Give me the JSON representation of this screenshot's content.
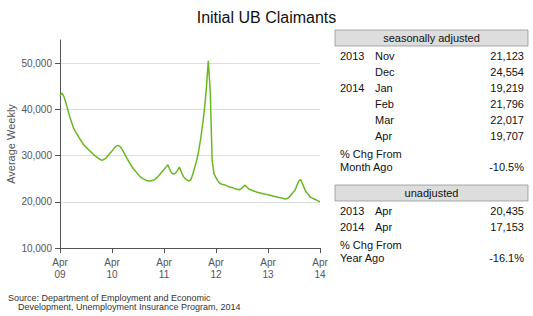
{
  "chart_data": {
    "type": "line",
    "title": "Initial UB Claimants",
    "ylabel": "Average Weekly",
    "categories": [
      "Apr\n09",
      null,
      null,
      null,
      null,
      null,
      null,
      null,
      null,
      null,
      null,
      null,
      null,
      null,
      null,
      null,
      null,
      null,
      null,
      null,
      null,
      null,
      null,
      null,
      null,
      null,
      null,
      "Apr\n10",
      null,
      null,
      null,
      null,
      null,
      null,
      null,
      null,
      null,
      null,
      null,
      null,
      null,
      null,
      null,
      null,
      null,
      null,
      null,
      null,
      null,
      null,
      null,
      null,
      null,
      null,
      "Apr\n11",
      null,
      null,
      null,
      null,
      null,
      null,
      null,
      null,
      null,
      null,
      null,
      null,
      null,
      null,
      null,
      null,
      null,
      null,
      null,
      null,
      null,
      null,
      null,
      null,
      null,
      null,
      "Apr\n12",
      null,
      null,
      null,
      null,
      null,
      null,
      null,
      null,
      null,
      null,
      null,
      null,
      null,
      null,
      null,
      null,
      null,
      null,
      null,
      null,
      null,
      null,
      null,
      null,
      null,
      null,
      "Apr\n13",
      null,
      null,
      null,
      null,
      null,
      null,
      null,
      null,
      null,
      null,
      null,
      null,
      null,
      null,
      null,
      null,
      null,
      null,
      null,
      null,
      null,
      null,
      null,
      null,
      null,
      null,
      "Apr\n14"
    ],
    "values": [
      43000,
      43500,
      42800,
      41500,
      40000,
      38500,
      37200,
      36000,
      35200,
      34500,
      33800,
      33200,
      32500,
      32000,
      31600,
      31200,
      30800,
      30400,
      30000,
      29700,
      29400,
      29100,
      29000,
      29200,
      29500,
      30000,
      30500,
      31000,
      31500,
      32000,
      32200,
      32000,
      31500,
      30800,
      30000,
      29200,
      28500,
      27800,
      27200,
      26700,
      26200,
      25700,
      25300,
      25000,
      24800,
      24600,
      24500,
      24500,
      24600,
      24800,
      25100,
      25500,
      26000,
      26500,
      27000,
      27500,
      28000,
      27000,
      26200,
      26000,
      26200,
      26800,
      27500,
      26500,
      25500,
      25000,
      24700,
      24500,
      24800,
      26000,
      27500,
      29000,
      31000,
      33500,
      36500,
      40000,
      44500,
      50500,
      44000,
      29000,
      26000,
      25200,
      24500,
      24000,
      23800,
      23700,
      23600,
      23400,
      23200,
      23100,
      23000,
      22800,
      22700,
      22600,
      22800,
      23200,
      23600,
      23200,
      22800,
      22600,
      22400,
      22300,
      22100,
      22000,
      21900,
      21800,
      21700,
      21600,
      21500,
      21400,
      21300,
      21200,
      21100,
      21000,
      20900,
      20800,
      20700,
      20600,
      20700,
      21000,
      21500,
      22000,
      22500,
      23500,
      24500,
      24800,
      23800,
      22800,
      22000,
      21500,
      21000,
      20800,
      20600,
      20400,
      20200,
      20000
    ],
    "color": "#6ab820",
    "ylim": [
      10000,
      55000
    ],
    "yticks": [
      {
        "value": 10000,
        "label": "10,000"
      },
      {
        "value": 20000,
        "label": "20,000"
      },
      {
        "value": 30000,
        "label": "30,000"
      },
      {
        "value": 40000,
        "label": "40,000"
      },
      {
        "value": 50000,
        "label": "50,000"
      }
    ],
    "grid": true,
    "source": "Source: Department of Employment and Economic\n    Development, Unemployment Insurance Program, 2014",
    "tables": [
      {
        "header": "seasonally adjusted",
        "rows": [
          [
            "2013",
            "Nov",
            "21,123"
          ],
          [
            null,
            "Dec",
            "24,554"
          ],
          [
            "2014",
            "Jan",
            "19,219"
          ],
          [
            null,
            "Feb",
            "21,796"
          ],
          [
            null,
            "Mar",
            "22,017"
          ],
          [
            null,
            "Apr",
            "19,707"
          ]
        ],
        "change_label": [
          "% Chg From",
          "Month Ago"
        ],
        "change": "-10.5%"
      },
      {
        "header": "unadjusted",
        "rows": [
          [
            "2013",
            "Apr",
            "20,435"
          ],
          [
            "2014",
            "Apr",
            "17,153"
          ]
        ],
        "change_label": [
          "% Chg From",
          "Year Ago"
        ],
        "change": "-16.1%"
      }
    ]
  }
}
